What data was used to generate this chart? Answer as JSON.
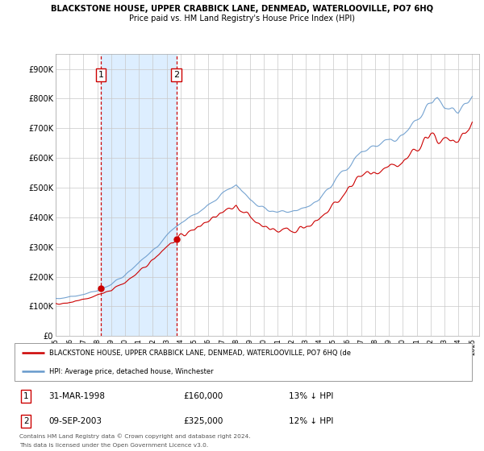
{
  "title": "BLACKSTONE HOUSE, UPPER CRABBICK LANE, DENMEAD, WATERLOOVILLE, PO7 6HQ",
  "subtitle": "Price paid vs. HM Land Registry's House Price Index (HPI)",
  "xlim": [
    1995.0,
    2025.5
  ],
  "ylim": [
    0,
    950000
  ],
  "yticks": [
    0,
    100000,
    200000,
    300000,
    400000,
    500000,
    600000,
    700000,
    800000,
    900000
  ],
  "ytick_labels": [
    "£0",
    "£100K",
    "£200K",
    "£300K",
    "£400K",
    "£500K",
    "£600K",
    "£700K",
    "£800K",
    "£900K"
  ],
  "sale1_x": 1998.25,
  "sale1_y": 160000,
  "sale1_label": "1",
  "sale1_date": "31-MAR-1998",
  "sale1_price": "£160,000",
  "sale1_hpi": "13% ↓ HPI",
  "sale2_x": 2003.69,
  "sale2_y": 325000,
  "sale2_label": "2",
  "sale2_date": "09-SEP-2003",
  "sale2_price": "£325,000",
  "sale2_hpi": "12% ↓ HPI",
  "line_color_red": "#cc0000",
  "line_color_blue": "#6699cc",
  "shaded_region_color": "#ddeeff",
  "legend_label_red": "BLACKSTONE HOUSE, UPPER CRABBICK LANE, DENMEAD, WATERLOOVILLE, PO7 6HQ (de",
  "legend_label_blue": "HPI: Average price, detached house, Winchester",
  "footer1": "Contains HM Land Registry data © Crown copyright and database right 2024.",
  "footer2": "This data is licensed under the Open Government Licence v3.0."
}
